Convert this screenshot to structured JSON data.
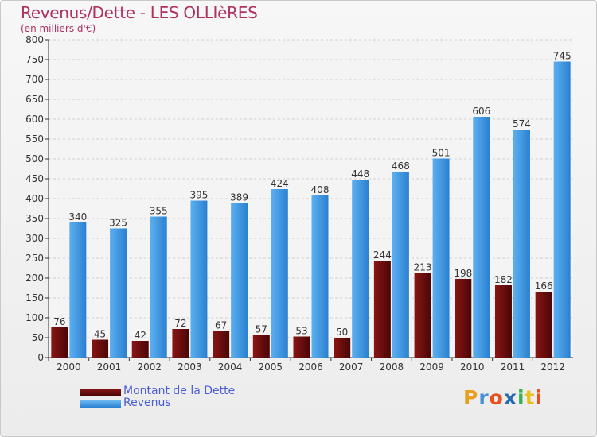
{
  "chart_data": {
    "type": "bar",
    "title": "Revenus/Dette - LES OLLIèRES",
    "subtitle": "(en milliers d'€)",
    "categories": [
      "2000",
      "2001",
      "2002",
      "2003",
      "2004",
      "2005",
      "2006",
      "2007",
      "2008",
      "2009",
      "2010",
      "2011",
      "2012"
    ],
    "series": [
      {
        "name": "Montant de la Dette",
        "color": "#7a1010",
        "values": [
          76,
          45,
          42,
          72,
          67,
          57,
          53,
          50,
          244,
          213,
          198,
          182,
          166
        ]
      },
      {
        "name": "Revenus",
        "color": "#3d9ae6",
        "values": [
          340,
          325,
          355,
          395,
          389,
          424,
          408,
          448,
          468,
          501,
          606,
          574,
          745
        ]
      }
    ],
    "ylim": [
      0,
      800
    ],
    "ytick_step": 50,
    "grid": true,
    "legend_position": "bottom-left"
  },
  "logo": {
    "text": "Proxiti",
    "letters": [
      "P",
      "r",
      "o",
      "x",
      "i",
      "t",
      "i"
    ],
    "colors": [
      "#e8a020",
      "#4a90d9",
      "#e85020",
      "#2a6ab0",
      "#3bb050",
      "#e8c020",
      "#e85020"
    ]
  }
}
